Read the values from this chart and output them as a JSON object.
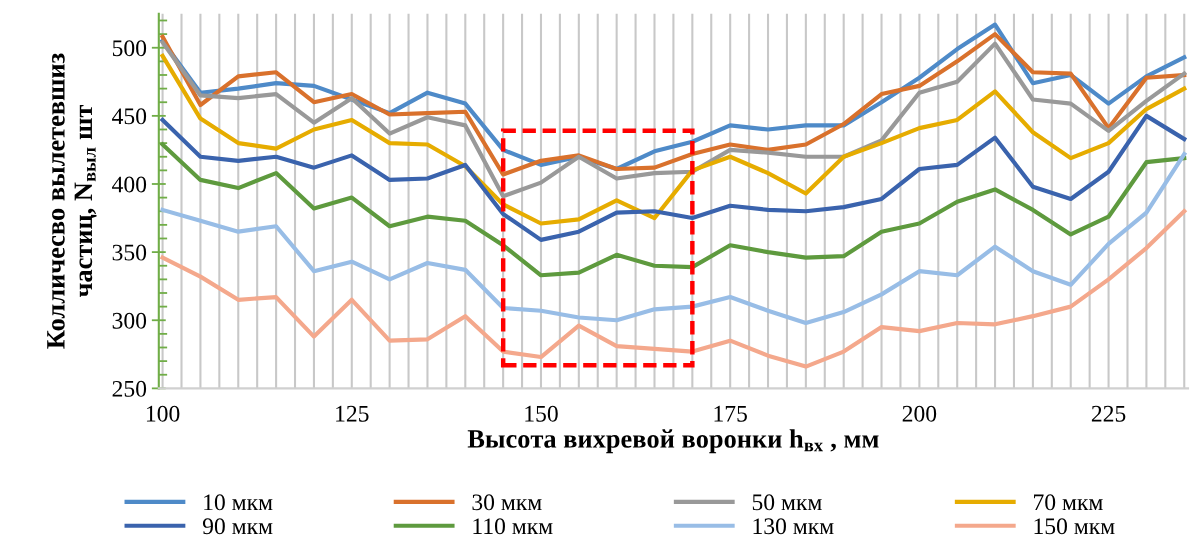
{
  "chart_data": {
    "type": "line",
    "xlabel": "Высота вихревой воронки h$_{вх}$ , мм",
    "ylabel": "Колличесво вылетевшиз\nчастиц, N$_{выл}$ шт",
    "x": [
      100,
      105,
      110,
      115,
      120,
      125,
      130,
      135,
      140,
      145,
      150,
      155,
      160,
      165,
      170,
      175,
      180,
      185,
      190,
      195,
      200,
      205,
      210,
      215,
      220,
      225,
      230,
      235
    ],
    "xlim": [
      99.5,
      235.5
    ],
    "xticks": [
      100,
      125,
      150,
      175,
      200,
      225
    ],
    "ylim": [
      250,
      525
    ],
    "yticks": [
      250,
      300,
      350,
      400,
      450,
      500
    ],
    "grid": "x",
    "legend": "bottom",
    "marker": "none",
    "line_style": "solid",
    "series": [
      {
        "name": "10 мкм",
        "color": "#4e8ac8",
        "values": [
          505,
          467,
          470,
          474,
          472,
          462,
          452,
          467,
          459,
          425,
          414,
          420,
          411,
          424,
          431,
          443,
          440,
          443,
          443,
          460,
          478,
          499,
          517,
          474,
          480,
          459,
          479,
          493
        ]
      },
      {
        "name": "30 мкм",
        "color": "#d9712c",
        "values": [
          508,
          458,
          479,
          482,
          460,
          466,
          451,
          452,
          453,
          407,
          417,
          421,
          411,
          412,
          422,
          429,
          425,
          429,
          444,
          466,
          472,
          490,
          510,
          482,
          481,
          441,
          478,
          480
        ]
      },
      {
        "name": "50 мкм",
        "color": "#999999",
        "values": [
          504,
          465,
          463,
          466,
          445,
          463,
          437,
          449,
          443,
          391,
          401,
          420,
          404,
          408,
          409,
          425,
          423,
          420,
          420,
          432,
          467,
          475,
          503,
          462,
          459,
          439,
          461,
          481
        ]
      },
      {
        "name": "70 мкм",
        "color": "#e6ac00",
        "values": [
          494,
          448,
          430,
          426,
          440,
          447,
          430,
          429,
          413,
          385,
          371,
          374,
          388,
          375,
          410,
          420,
          408,
          393,
          420,
          430,
          441,
          447,
          468,
          438,
          419,
          430,
          455,
          470
        ]
      },
      {
        "name": "90 мкм",
        "color": "#3a63ad",
        "values": [
          447,
          420,
          417,
          420,
          412,
          421,
          403,
          404,
          414,
          378,
          359,
          365,
          379,
          380,
          375,
          384,
          381,
          380,
          383,
          389,
          411,
          414,
          434,
          398,
          389,
          409,
          450,
          433
        ]
      },
      {
        "name": "110 мкм",
        "color": "#5e9a3e",
        "values": [
          429,
          403,
          397,
          408,
          382,
          390,
          369,
          376,
          373,
          355,
          333,
          335,
          348,
          340,
          339,
          355,
          350,
          346,
          347,
          365,
          371,
          387,
          396,
          381,
          363,
          376,
          416,
          419
        ]
      },
      {
        "name": "130 мкм",
        "color": "#98bde6",
        "values": [
          381,
          373,
          365,
          369,
          336,
          343,
          330,
          342,
          337,
          309,
          307,
          302,
          300,
          308,
          310,
          317,
          307,
          298,
          306,
          319,
          336,
          333,
          354,
          336,
          326,
          356,
          379,
          422
        ]
      },
      {
        "name": "150 мкм",
        "color": "#f4a88c",
        "values": [
          346,
          332,
          315,
          317,
          288,
          315,
          285,
          286,
          303,
          277,
          273,
          296,
          281,
          279,
          277,
          285,
          274,
          266,
          277,
          295,
          292,
          298,
          297,
          303,
          310,
          330,
          353,
          380
        ]
      }
    ]
  }
}
